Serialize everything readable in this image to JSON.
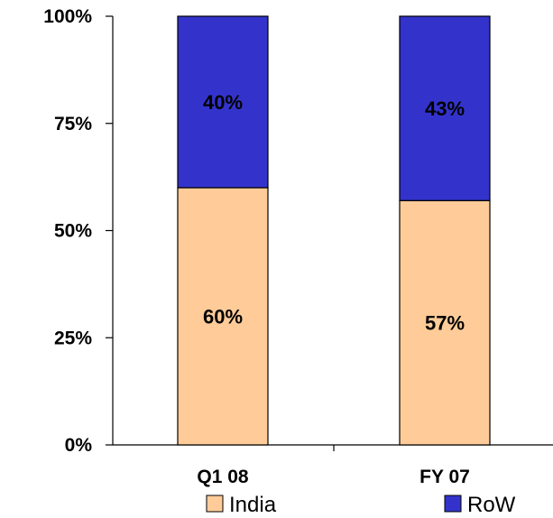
{
  "chart_data": {
    "type": "bar",
    "stacked": true,
    "percent": true,
    "categories": [
      "Q1 08",
      "FY 07"
    ],
    "series": [
      {
        "name": "India",
        "values": [
          60,
          57
        ],
        "labels": [
          "60%",
          "57%"
        ],
        "color": "#FFCC99"
      },
      {
        "name": "RoW",
        "values": [
          40,
          43
        ],
        "labels": [
          "40%",
          "43%"
        ],
        "color": "#3333CC"
      }
    ],
    "ylim": [
      0,
      100
    ],
    "yticks": [
      0,
      25,
      50,
      75,
      100
    ],
    "ytick_labels": [
      "0%",
      "25%",
      "50%",
      "75%",
      "100%"
    ],
    "grid": false,
    "legend": "bottom"
  }
}
